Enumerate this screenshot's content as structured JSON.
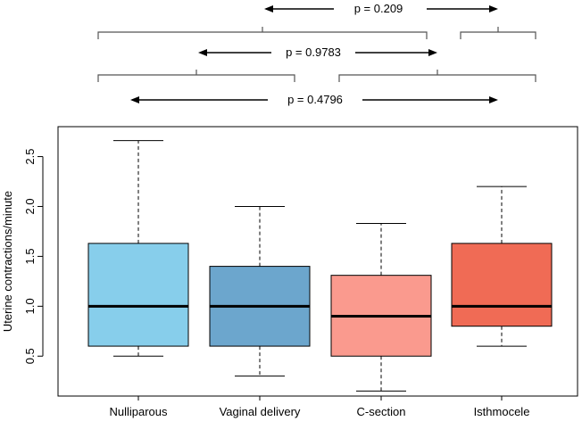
{
  "chart_data": {
    "type": "boxplot",
    "ylabel": "Uterine contractions/minute",
    "ylim": [
      0.1,
      2.8
    ],
    "y_ticks": [
      "0.5",
      "1.0",
      "1.5",
      "2.0",
      "2.5"
    ],
    "y_tick_values": [
      0.5,
      1.0,
      1.5,
      2.0,
      2.5
    ],
    "categories": [
      "Nulliparous",
      "Vaginal delivery",
      "C-section",
      "Isthmocele"
    ],
    "boxes": [
      {
        "category": "Nulliparous",
        "whisker_low": 0.5,
        "q1": 0.6,
        "median": 1.0,
        "q3": 1.63,
        "whisker_high": 2.66,
        "color": "#87ceeb"
      },
      {
        "category": "Vaginal delivery",
        "whisker_low": 0.3,
        "q1": 0.6,
        "median": 1.0,
        "q3": 1.4,
        "whisker_high": 2.0,
        "color": "#6ca6cd"
      },
      {
        "category": "C-section",
        "whisker_low": 0.15,
        "q1": 0.5,
        "median": 0.9,
        "q3": 1.31,
        "whisker_high": 1.83,
        "color": "#fa9a8e"
      },
      {
        "category": "Isthmocele",
        "whisker_low": 0.6,
        "q1": 0.8,
        "median": 1.0,
        "q3": 1.63,
        "whisker_high": 2.2,
        "color": "#f06b55"
      }
    ],
    "comparisons": [
      {
        "label": "p = 0.209",
        "group_a": [
          "Nulliparous",
          "Vaginal delivery",
          "C-section"
        ],
        "group_b": [
          "Isthmocele"
        ]
      },
      {
        "label": "p = 0.9783",
        "group_a": [
          "Nulliparous",
          "Vaginal delivery"
        ],
        "group_b": [
          "C-section",
          "Isthmocele"
        ]
      },
      {
        "label": "p = 0.4796",
        "group_a": [
          "Nulliparous"
        ],
        "group_b": [
          "Vaginal delivery",
          "C-section",
          "Isthmocele"
        ]
      }
    ]
  }
}
